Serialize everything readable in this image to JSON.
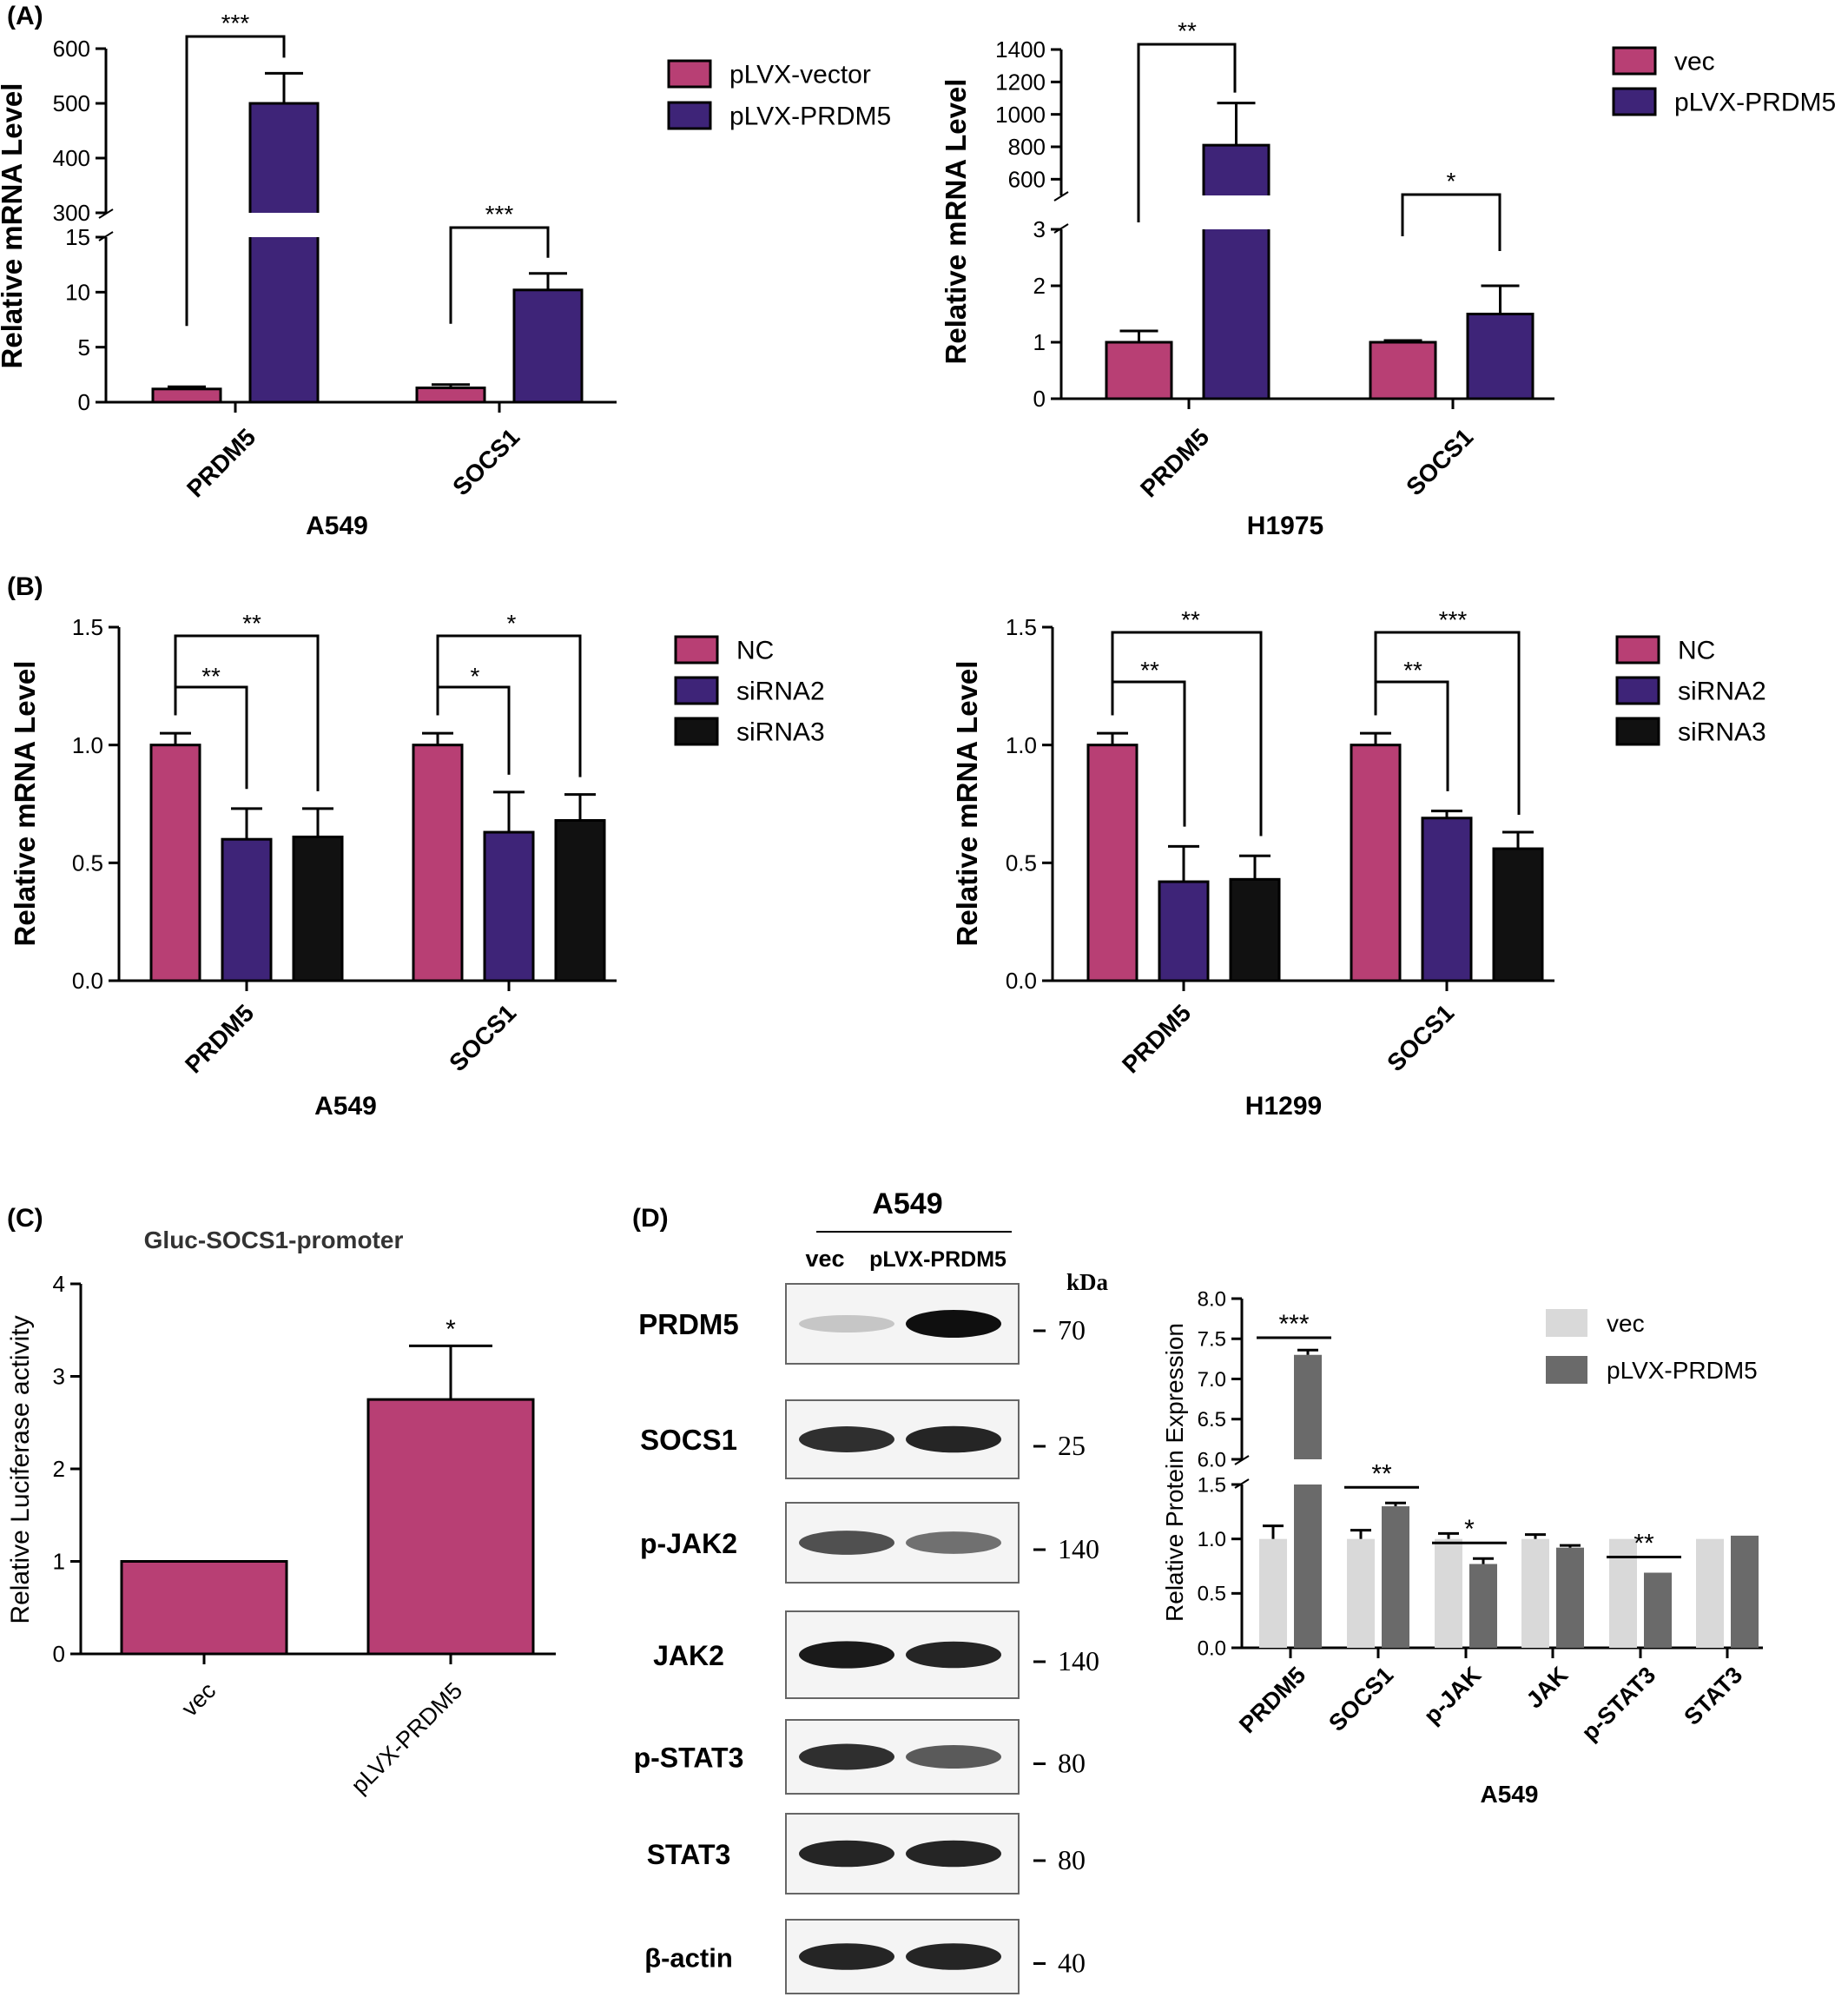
{
  "colors": {
    "vector": "#b83f74",
    "prdm5": "#3e2478",
    "sirna3": "#111111",
    "vec_light": "#d9d9d9",
    "prdm5_gray": "#6a6a6a"
  },
  "panels": {
    "a": {
      "label": "(A)"
    },
    "b": {
      "label": "(B)"
    },
    "c": {
      "label": "(C)"
    },
    "d": {
      "label": "(D)"
    }
  },
  "chart_data": [
    {
      "id": "A1",
      "type": "bar",
      "title": "",
      "xlabel": "A549",
      "ylabel": "Relative mRNA Level",
      "categories": [
        "PRDM5",
        "SOCS1"
      ],
      "series": [
        {
          "name": "pLVX-vector",
          "values": [
            1.2,
            1.3
          ],
          "errors": [
            0.2,
            0.3
          ]
        },
        {
          "name": "pLVX-PRDM5",
          "values": [
            500,
            10.2
          ],
          "errors": [
            55,
            1.5
          ]
        }
      ],
      "y_broken_axis": {
        "lower": [
          0,
          15
        ],
        "upper": [
          300,
          600
        ]
      },
      "yticks_lower": [
        "0",
        "5",
        "10",
        "15"
      ],
      "yticks_upper": [
        "300",
        "400",
        "500",
        "600"
      ],
      "significance": [
        "***",
        "***"
      ],
      "legend": "top-right",
      "grid": false
    },
    {
      "id": "A2",
      "type": "bar",
      "title": "",
      "xlabel": "H1975",
      "ylabel": "Relative mRNA Level",
      "categories": [
        "PRDM5",
        "SOCS1"
      ],
      "series": [
        {
          "name": "vec",
          "values": [
            1.0,
            1.0
          ],
          "errors": [
            0.2,
            0.03
          ]
        },
        {
          "name": "pLVX-PRDM5",
          "values": [
            810,
            1.5
          ],
          "errors": [
            260,
            0.5
          ]
        }
      ],
      "y_broken_axis": {
        "lower": [
          0,
          3
        ],
        "upper": [
          500,
          1400
        ]
      },
      "yticks_lower": [
        "0",
        "1",
        "2",
        "3"
      ],
      "yticks_upper": [
        "600",
        "800",
        "1000",
        "1200",
        "1400"
      ],
      "significance": [
        "**",
        "*"
      ],
      "legend": "top-right",
      "grid": false
    },
    {
      "id": "B1",
      "type": "bar",
      "title": "",
      "xlabel": "A549",
      "ylabel": "Relative mRNA Level",
      "categories": [
        "PRDM5",
        "SOCS1"
      ],
      "series": [
        {
          "name": "NC",
          "values": [
            1.0,
            1.0
          ],
          "errors": [
            0.05,
            0.05
          ]
        },
        {
          "name": "siRNA2",
          "values": [
            0.6,
            0.63
          ],
          "errors": [
            0.13,
            0.17
          ]
        },
        {
          "name": "siRNA3",
          "values": [
            0.61,
            0.68
          ],
          "errors": [
            0.12,
            0.11
          ]
        }
      ],
      "ylim": [
        0,
        1.5
      ],
      "yticks": [
        "0.0",
        "0.5",
        "1.0",
        "1.5"
      ],
      "significance": [
        [
          "**",
          "**"
        ],
        [
          "*",
          "*"
        ]
      ],
      "legend": "top-right",
      "grid": false
    },
    {
      "id": "B2",
      "type": "bar",
      "title": "",
      "xlabel": "H1299",
      "ylabel": "Relative mRNA Level",
      "categories": [
        "PRDM5",
        "SOCS1"
      ],
      "series": [
        {
          "name": "NC",
          "values": [
            1.0,
            1.0
          ],
          "errors": [
            0.05,
            0.05
          ]
        },
        {
          "name": "siRNA2",
          "values": [
            0.42,
            0.69
          ],
          "errors": [
            0.15,
            0.03
          ]
        },
        {
          "name": "siRNA3",
          "values": [
            0.43,
            0.56
          ],
          "errors": [
            0.1,
            0.07
          ]
        }
      ],
      "ylim": [
        0,
        1.5
      ],
      "yticks": [
        "0.0",
        "0.5",
        "1.0",
        "1.5"
      ],
      "significance": [
        [
          "**",
          "**"
        ],
        [
          "**",
          "***"
        ]
      ],
      "legend": "top-right",
      "grid": false
    },
    {
      "id": "C",
      "type": "bar",
      "title": "Gluc-SOCS1-promoter",
      "xlabel": "",
      "ylabel": "Relative Luciferase activity",
      "categories": [
        "vec",
        "pLVX-PRDM5"
      ],
      "values": [
        1.0,
        2.75
      ],
      "errors": [
        0,
        0.58
      ],
      "ylim": [
        0,
        4
      ],
      "yticks": [
        "0",
        "1",
        "2",
        "3",
        "4"
      ],
      "significance": [
        "*"
      ],
      "grid": false
    },
    {
      "id": "D-quant",
      "type": "bar",
      "title": "",
      "xlabel": "A549",
      "ylabel": "Relative Protein Expression",
      "categories": [
        "PRDM5",
        "SOCS1",
        "p-JAK",
        "JAK",
        "p-STAT3",
        "STAT3"
      ],
      "series": [
        {
          "name": "vec",
          "values": [
            1.0,
            1.0,
            1.0,
            1.0,
            1.0,
            1.0
          ],
          "errors": [
            0.12,
            0.08,
            0.05,
            0.04,
            0.0,
            0.0
          ]
        },
        {
          "name": "pLVX-PRDM5",
          "values": [
            7.3,
            1.3,
            0.77,
            0.92,
            0.69,
            1.03
          ],
          "errors": [
            0.06,
            0.03,
            0.05,
            0.02,
            0.0,
            0.0
          ]
        }
      ],
      "y_broken_axis": {
        "lower": [
          0,
          1.5
        ],
        "upper": [
          6.0,
          8.0
        ]
      },
      "yticks_lower": [
        "0.0",
        "0.5",
        "1.0",
        "1.5"
      ],
      "yticks_upper": [
        "6.0",
        "6.5",
        "7.0",
        "7.5",
        "8.0"
      ],
      "significance": [
        "***",
        "**",
        "*",
        "",
        "**",
        ""
      ],
      "legend": "top-right",
      "grid": false
    }
  ],
  "western_blot": {
    "cell_line": "A549",
    "lanes": [
      "vec",
      "pLVX-PRDM5"
    ],
    "kda_label": "kDa",
    "rows": [
      {
        "protein": "PRDM5",
        "kda": "70",
        "intensity": [
          0.15,
          1.0
        ]
      },
      {
        "protein": "SOCS1",
        "kda": "25",
        "intensity": [
          0.85,
          0.9
        ]
      },
      {
        "protein": "p-JAK2",
        "kda": "140",
        "intensity": [
          0.7,
          0.55
        ]
      },
      {
        "protein": "JAK2",
        "kda": "140",
        "intensity": [
          0.95,
          0.9
        ]
      },
      {
        "protein": "p-STAT3",
        "kda": "80",
        "intensity": [
          0.85,
          0.65
        ]
      },
      {
        "protein": "STAT3",
        "kda": "80",
        "intensity": [
          0.9,
          0.9
        ]
      },
      {
        "protein": "β-actin",
        "kda": "40",
        "intensity": [
          0.9,
          0.9
        ]
      }
    ]
  }
}
